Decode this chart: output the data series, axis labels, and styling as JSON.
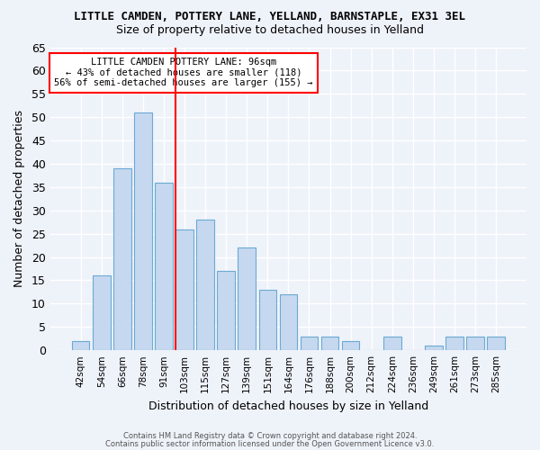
{
  "title": "LITTLE CAMDEN, POTTERY LANE, YELLAND, BARNSTAPLE, EX31 3EL",
  "subtitle": "Size of property relative to detached houses in Yelland",
  "xlabel": "Distribution of detached houses by size in Yelland",
  "ylabel": "Number of detached properties",
  "bar_labels": [
    "42sqm",
    "54sqm",
    "66sqm",
    "78sqm",
    "91sqm",
    "103sqm",
    "115sqm",
    "127sqm",
    "139sqm",
    "151sqm",
    "164sqm",
    "176sqm",
    "188sqm",
    "200sqm",
    "212sqm",
    "224sqm",
    "236sqm",
    "249sqm",
    "261sqm",
    "273sqm",
    "285sqm"
  ],
  "bar_values": [
    2,
    16,
    39,
    51,
    36,
    26,
    28,
    17,
    22,
    13,
    12,
    3,
    3,
    2,
    0,
    3,
    0,
    1,
    3,
    3,
    3
  ],
  "bar_color": "#c5d8ef",
  "bar_edge_color": "#6aaad4",
  "vline_x": 4.575,
  "vline_color": "red",
  "ylim": [
    0,
    65
  ],
  "yticks": [
    0,
    5,
    10,
    15,
    20,
    25,
    30,
    35,
    40,
    45,
    50,
    55,
    60,
    65
  ],
  "annotation_title": "LITTLE CAMDEN POTTERY LANE: 96sqm",
  "annotation_line1": "← 43% of detached houses are smaller (118)",
  "annotation_line2": "56% of semi-detached houses are larger (155) →",
  "footer1": "Contains HM Land Registry data © Crown copyright and database right 2024.",
  "footer2": "Contains public sector information licensed under the Open Government Licence v3.0.",
  "bg_color": "#eef2f9",
  "grid_color": "#ffffff"
}
